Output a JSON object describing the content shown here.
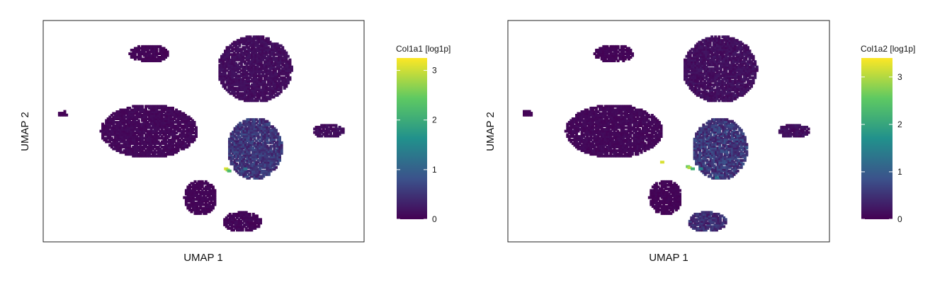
{
  "colormap": [
    "#440154",
    "#3b528b",
    "#21918c",
    "#5ec962",
    "#fde725"
  ],
  "panels": [
    {
      "chart_data": {
        "type": "scatter",
        "xlabel": "UMAP 1",
        "ylabel": "UMAP 2",
        "grid": false,
        "colorbar": {
          "title": "Col1a1 [log1p]",
          "ticks": [
            0,
            1,
            2,
            3
          ],
          "range": [
            0,
            3.25
          ]
        },
        "clusters": [
          {
            "shape": "blob",
            "center": [
              0.66,
              0.78
            ],
            "radius": [
              0.115,
              0.15
            ],
            "values": [
              0.05,
              0.2
            ]
          },
          {
            "shape": "blob",
            "center": [
              0.33,
              0.5
            ],
            "radius": [
              0.15,
              0.12
            ],
            "values": [
              0.02,
              0.12
            ]
          },
          {
            "shape": "blob",
            "center": [
              0.66,
              0.42
            ],
            "radius": [
              0.085,
              0.14
            ],
            "values": [
              0.25,
              0.8
            ]
          },
          {
            "shape": "blob",
            "center": [
              0.49,
              0.2
            ],
            "radius": [
              0.05,
              0.08
            ],
            "values": [
              0.0,
              0.08
            ]
          },
          {
            "shape": "blob",
            "center": [
              0.62,
              0.09
            ],
            "radius": [
              0.06,
              0.045
            ],
            "values": [
              0.0,
              0.1
            ]
          },
          {
            "shape": "blob",
            "center": [
              0.89,
              0.5
            ],
            "radius": [
              0.05,
              0.03
            ],
            "values": [
              0.05,
              0.2
            ]
          },
          {
            "shape": "blob",
            "center": [
              0.33,
              0.85
            ],
            "radius": [
              0.06,
              0.04
            ],
            "values": [
              0.0,
              0.08
            ]
          },
          {
            "shape": "blob",
            "center": [
              0.06,
              0.58
            ],
            "radius": [
              0.015,
              0.015
            ],
            "values": [
              0.0,
              0.05
            ]
          }
        ],
        "highlights": [
          {
            "center": [
              0.57,
              0.33
            ],
            "value": 3.1
          },
          {
            "center": [
              0.575,
              0.325
            ],
            "value": 2.8
          },
          {
            "center": [
              0.58,
              0.32
            ],
            "value": 2.2
          },
          {
            "center": [
              0.63,
              0.33
            ],
            "value": 1.2
          }
        ]
      }
    },
    {
      "chart_data": {
        "type": "scatter",
        "xlabel": "UMAP 1",
        "ylabel": "UMAP 2",
        "grid": false,
        "colorbar": {
          "title": "Col1a2 [log1p]",
          "ticks": [
            0,
            1,
            2,
            3
          ],
          "range": [
            0,
            3.4
          ]
        },
        "clusters": [
          {
            "shape": "blob",
            "center": [
              0.66,
              0.78
            ],
            "radius": [
              0.115,
              0.15
            ],
            "values": [
              0.05,
              0.25
            ]
          },
          {
            "shape": "blob",
            "center": [
              0.33,
              0.5
            ],
            "radius": [
              0.15,
              0.12
            ],
            "values": [
              0.02,
              0.12
            ]
          },
          {
            "shape": "blob",
            "center": [
              0.66,
              0.42
            ],
            "radius": [
              0.085,
              0.14
            ],
            "values": [
              0.25,
              0.9
            ]
          },
          {
            "shape": "blob",
            "center": [
              0.49,
              0.2
            ],
            "radius": [
              0.05,
              0.08
            ],
            "values": [
              0.0,
              0.08
            ]
          },
          {
            "shape": "blob",
            "center": [
              0.62,
              0.09
            ],
            "radius": [
              0.06,
              0.045
            ],
            "values": [
              0.2,
              0.7
            ]
          },
          {
            "shape": "blob",
            "center": [
              0.89,
              0.5
            ],
            "radius": [
              0.05,
              0.03
            ],
            "values": [
              0.05,
              0.25
            ]
          },
          {
            "shape": "blob",
            "center": [
              0.33,
              0.85
            ],
            "radius": [
              0.06,
              0.04
            ],
            "values": [
              0.0,
              0.08
            ]
          },
          {
            "shape": "blob",
            "center": [
              0.06,
              0.58
            ],
            "radius": [
              0.015,
              0.015
            ],
            "values": [
              0.0,
              0.05
            ]
          }
        ],
        "highlights": [
          {
            "center": [
              0.56,
              0.34
            ],
            "value": 2.6
          },
          {
            "center": [
              0.565,
              0.335
            ],
            "value": 3.0
          },
          {
            "center": [
              0.575,
              0.33
            ],
            "value": 2.2
          },
          {
            "center": [
              0.6,
              0.33
            ],
            "value": 1.5
          },
          {
            "center": [
              0.48,
              0.36
            ],
            "value": 3.2
          },
          {
            "center": [
              0.65,
              0.29
            ],
            "value": 1.3
          }
        ]
      }
    }
  ]
}
